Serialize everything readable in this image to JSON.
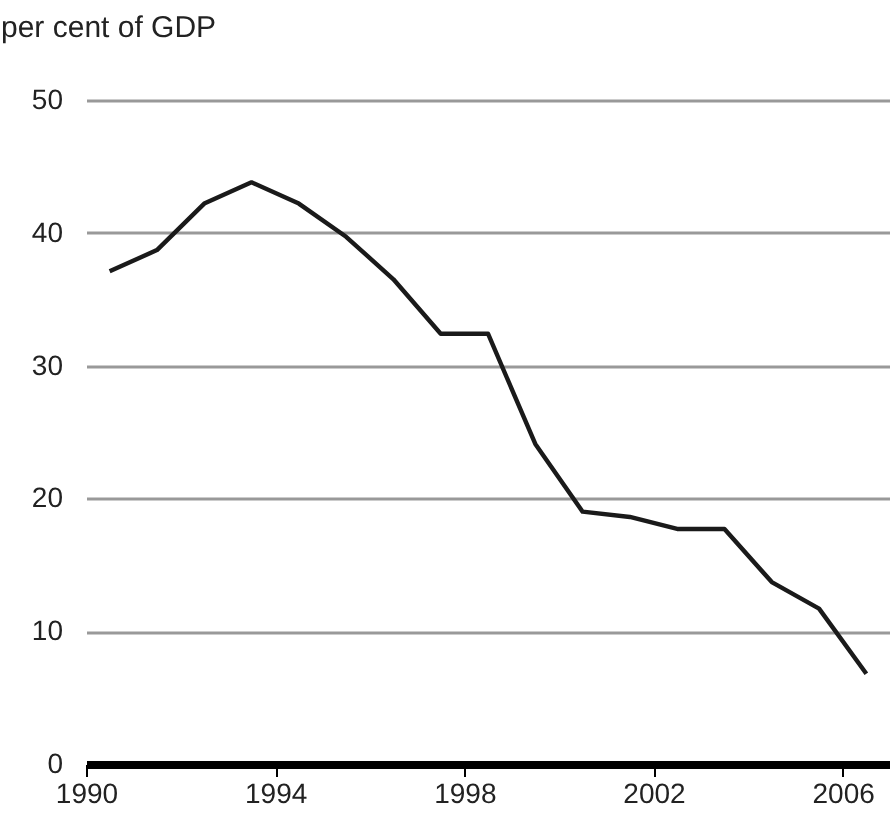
{
  "chart_data": {
    "type": "line",
    "ylabel": "per cent of GDP",
    "x": [
      1990.5,
      1991.5,
      1992.5,
      1993.5,
      1994.5,
      1995.5,
      1996.5,
      1997.5,
      1998.5,
      1999.5,
      2000.5,
      2001.5,
      2002.5,
      2003.5,
      2004.5,
      2005.5,
      2006.5
    ],
    "series": [
      {
        "color": "#1a1a1a",
        "values": [
          37.1,
          38.7,
          42.2,
          43.8,
          42.2,
          39.7,
          36.5,
          32.4,
          32.4,
          24.1,
          19.0,
          18.6,
          17.7,
          17.7,
          13.7,
          11.7,
          6.8
        ]
      }
    ],
    "xlim": [
      1990,
      2007
    ],
    "xticks": [
      1990,
      1994,
      1998,
      2002,
      2006
    ],
    "ylim": [
      0,
      50
    ],
    "yticks": [
      0,
      10,
      20,
      30,
      40,
      50
    ],
    "grid": "y",
    "legend": false,
    "marker": "none",
    "line_style": "solid"
  }
}
